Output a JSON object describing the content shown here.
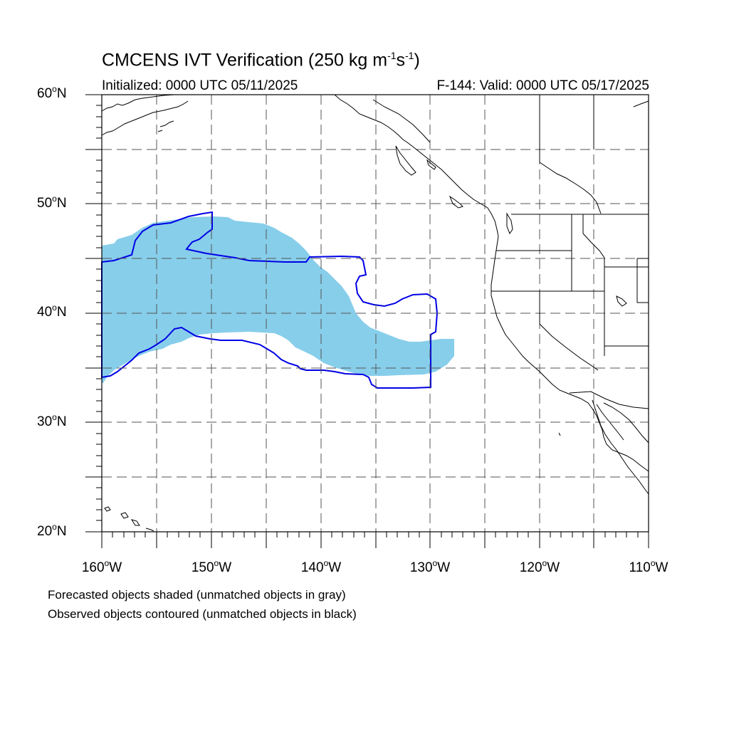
{
  "title": {
    "text": "CMCENS IVT Verification (250 kg m",
    "sup1": "-1",
    "mid": "s",
    "sup2": "-1",
    "close": ")"
  },
  "init_text": "Initialized: 0000 UTC 05/11/2025",
  "valid_text": "F-144: Valid: 0000 UTC 05/17/2025",
  "lat_labels": [
    {
      "id": "60",
      "num": "60",
      "hem": "N"
    },
    {
      "id": "50",
      "num": "50",
      "hem": "N"
    },
    {
      "id": "40",
      "num": "40",
      "hem": "N"
    },
    {
      "id": "30",
      "num": "30",
      "hem": "N"
    },
    {
      "id": "20",
      "num": "20",
      "hem": "N"
    }
  ],
  "lon_labels": [
    {
      "id": "160",
      "num": "160",
      "hem": "W"
    },
    {
      "id": "150",
      "num": "150",
      "hem": "W"
    },
    {
      "id": "140",
      "num": "140",
      "hem": "W"
    },
    {
      "id": "130",
      "num": "130",
      "hem": "W"
    },
    {
      "id": "120",
      "num": "120",
      "hem": "W"
    },
    {
      "id": "110",
      "num": "110",
      "hem": "W"
    }
  ],
  "degree_symbol": "o",
  "footer": {
    "line1": "Forecasted objects shaded (unmatched objects in gray)",
    "line2": "Observed objects contoured (unmatched objects in black)"
  },
  "colors": {
    "forecast_fill": "#87ceea",
    "observed_contour": "#0000e6",
    "coastline": "#000000",
    "grid": "#555555"
  },
  "map_extent": {
    "lon_min": -160,
    "lon_max": -110,
    "lat_min": 20,
    "lat_max": 60
  }
}
